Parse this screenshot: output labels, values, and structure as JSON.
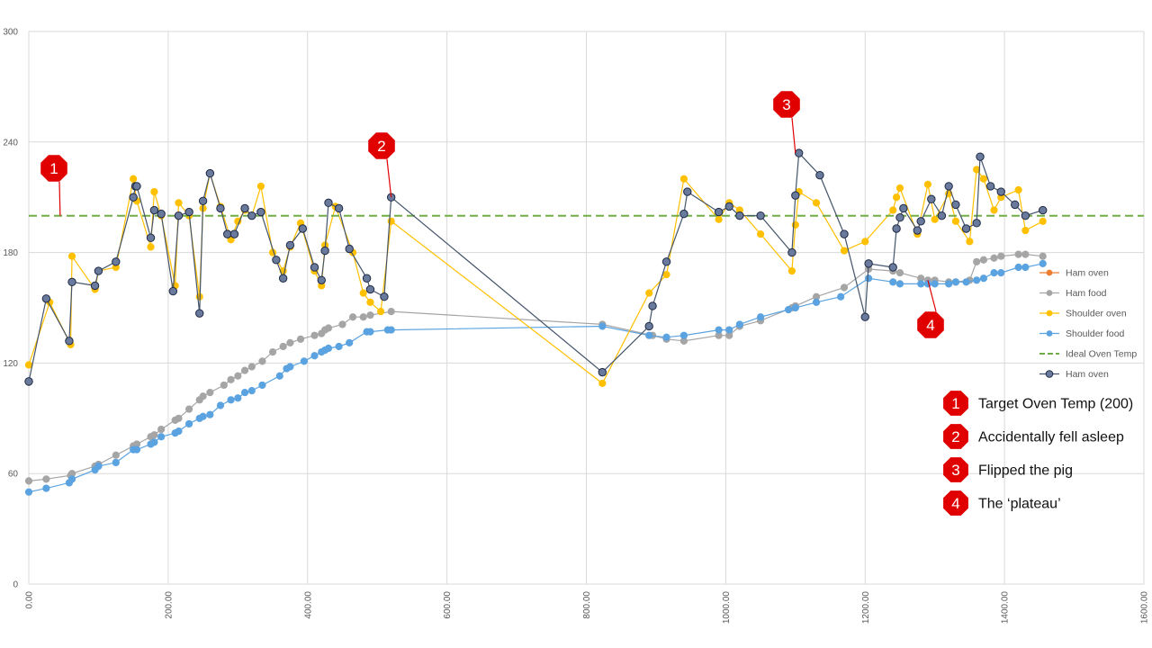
{
  "chart_data": {
    "type": "scatter",
    "title": "",
    "xlabel": "",
    "ylabel": "",
    "xlim": [
      0,
      1600
    ],
    "ylim": [
      0,
      300
    ],
    "x_ticks": [
      0,
      200,
      400,
      600,
      800,
      1000,
      1200,
      1400,
      1600
    ],
    "y_ticks": [
      0,
      60,
      120,
      180,
      240,
      300
    ],
    "x_tick_labels": [
      "0.00",
      "200.00",
      "400.00",
      "600.00",
      "800.00",
      "1000.00",
      "1200.00",
      "1400.00",
      "1600.00"
    ],
    "y_tick_labels": [
      "0",
      "60",
      "120",
      "180",
      "240",
      "300"
    ],
    "grid": true,
    "legend_position": "right",
    "legend": [
      "Ham oven",
      "Ham food",
      "Shoulder oven",
      "Shoulder food",
      "Ideal Oven Temp",
      "Ham oven"
    ],
    "series": [
      {
        "name": "Ham oven",
        "color": "#ed7d31",
        "style": "line-markers",
        "points": []
      },
      {
        "name": "Ham food",
        "color": "#a5a5a5",
        "style": "line-markers",
        "points": [
          [
            0,
            56
          ],
          [
            25,
            57
          ],
          [
            60,
            59
          ],
          [
            62,
            60
          ],
          [
            95,
            64
          ],
          [
            100,
            65
          ],
          [
            125,
            70
          ],
          [
            150,
            75
          ],
          [
            155,
            76
          ],
          [
            175,
            80
          ],
          [
            180,
            81
          ],
          [
            190,
            84
          ],
          [
            210,
            89
          ],
          [
            215,
            90
          ],
          [
            230,
            95
          ],
          [
            245,
            100
          ],
          [
            250,
            102
          ],
          [
            260,
            104
          ],
          [
            280,
            108
          ],
          [
            290,
            111
          ],
          [
            300,
            113
          ],
          [
            310,
            116
          ],
          [
            320,
            118
          ],
          [
            335,
            121
          ],
          [
            350,
            126
          ],
          [
            365,
            129
          ],
          [
            375,
            131
          ],
          [
            390,
            133
          ],
          [
            410,
            135
          ],
          [
            420,
            136
          ],
          [
            425,
            138
          ],
          [
            430,
            139
          ],
          [
            450,
            141
          ],
          [
            465,
            145
          ],
          [
            480,
            145
          ],
          [
            490,
            146
          ],
          [
            520,
            148
          ],
          [
            823,
            141
          ],
          [
            895,
            135
          ],
          [
            915,
            133
          ],
          [
            940,
            132
          ],
          [
            990,
            135
          ],
          [
            1005,
            135
          ],
          [
            1020,
            140
          ],
          [
            1050,
            143
          ],
          [
            1095,
            150
          ],
          [
            1100,
            151
          ],
          [
            1130,
            156
          ],
          [
            1170,
            161
          ],
          [
            1205,
            171
          ],
          [
            1240,
            170
          ],
          [
            1250,
            169
          ],
          [
            1280,
            166
          ],
          [
            1290,
            165
          ],
          [
            1300,
            165
          ],
          [
            1320,
            164
          ],
          [
            1330,
            164
          ],
          [
            1350,
            165
          ],
          [
            1360,
            175
          ],
          [
            1370,
            176
          ],
          [
            1385,
            177
          ],
          [
            1395,
            178
          ],
          [
            1420,
            179
          ],
          [
            1430,
            179
          ],
          [
            1455,
            178
          ]
        ]
      },
      {
        "name": "Shoulder oven",
        "color": "#ffc000",
        "style": "line-markers",
        "points": [
          [
            0,
            119
          ],
          [
            30,
            153
          ],
          [
            60,
            130
          ],
          [
            62,
            178
          ],
          [
            95,
            160
          ],
          [
            100,
            170
          ],
          [
            125,
            172
          ],
          [
            150,
            220
          ],
          [
            155,
            208
          ],
          [
            175,
            183
          ],
          [
            180,
            213
          ],
          [
            190,
            200
          ],
          [
            210,
            162
          ],
          [
            215,
            207
          ],
          [
            230,
            200
          ],
          [
            245,
            156
          ],
          [
            250,
            204
          ],
          [
            260,
            223
          ],
          [
            275,
            205
          ],
          [
            290,
            187
          ],
          [
            300,
            197
          ],
          [
            310,
            203
          ],
          [
            320,
            200
          ],
          [
            333,
            216
          ],
          [
            350,
            180
          ],
          [
            365,
            170
          ],
          [
            375,
            183
          ],
          [
            390,
            196
          ],
          [
            410,
            170
          ],
          [
            420,
            162
          ],
          [
            425,
            184
          ],
          [
            440,
            205
          ],
          [
            465,
            180
          ],
          [
            480,
            158
          ],
          [
            490,
            153
          ],
          [
            505,
            148
          ],
          [
            520,
            197
          ],
          [
            823,
            109
          ],
          [
            890,
            158
          ],
          [
            915,
            168
          ],
          [
            940,
            220
          ],
          [
            990,
            198
          ],
          [
            1005,
            207
          ],
          [
            1020,
            203
          ],
          [
            1050,
            190
          ],
          [
            1095,
            170
          ],
          [
            1100,
            195
          ],
          [
            1105,
            213
          ],
          [
            1130,
            207
          ],
          [
            1170,
            181
          ],
          [
            1200,
            186
          ],
          [
            1240,
            203
          ],
          [
            1245,
            210
          ],
          [
            1250,
            215
          ],
          [
            1275,
            190
          ],
          [
            1290,
            217
          ],
          [
            1300,
            198
          ],
          [
            1320,
            212
          ],
          [
            1330,
            197
          ],
          [
            1350,
            186
          ],
          [
            1360,
            225
          ],
          [
            1370,
            220
          ],
          [
            1385,
            203
          ],
          [
            1395,
            210
          ],
          [
            1420,
            214
          ],
          [
            1430,
            192
          ],
          [
            1455,
            197
          ]
        ]
      },
      {
        "name": "Shoulder food",
        "color": "#5ba3e0",
        "style": "line-markers",
        "points": [
          [
            0,
            50
          ],
          [
            25,
            52
          ],
          [
            58,
            55
          ],
          [
            62,
            57
          ],
          [
            95,
            62
          ],
          [
            100,
            64
          ],
          [
            125,
            66
          ],
          [
            150,
            73
          ],
          [
            155,
            73
          ],
          [
            175,
            76
          ],
          [
            180,
            77
          ],
          [
            190,
            80
          ],
          [
            210,
            82
          ],
          [
            215,
            83
          ],
          [
            230,
            87
          ],
          [
            245,
            90
          ],
          [
            250,
            91
          ],
          [
            260,
            92
          ],
          [
            275,
            97
          ],
          [
            290,
            100
          ],
          [
            300,
            101
          ],
          [
            310,
            104
          ],
          [
            320,
            105
          ],
          [
            335,
            108
          ],
          [
            360,
            113
          ],
          [
            370,
            117
          ],
          [
            375,
            118
          ],
          [
            395,
            121
          ],
          [
            410,
            124
          ],
          [
            420,
            126
          ],
          [
            425,
            127
          ],
          [
            430,
            128
          ],
          [
            445,
            129
          ],
          [
            460,
            131
          ],
          [
            485,
            137
          ],
          [
            490,
            137
          ],
          [
            515,
            138
          ],
          [
            520,
            138
          ],
          [
            823,
            140
          ],
          [
            890,
            135
          ],
          [
            915,
            134
          ],
          [
            940,
            135
          ],
          [
            990,
            138
          ],
          [
            1005,
            138
          ],
          [
            1020,
            141
          ],
          [
            1050,
            145
          ],
          [
            1090,
            149
          ],
          [
            1100,
            150
          ],
          [
            1130,
            153
          ],
          [
            1165,
            156
          ],
          [
            1205,
            166
          ],
          [
            1240,
            164
          ],
          [
            1250,
            163
          ],
          [
            1280,
            163
          ],
          [
            1290,
            163
          ],
          [
            1300,
            163
          ],
          [
            1320,
            163
          ],
          [
            1330,
            164
          ],
          [
            1345,
            164
          ],
          [
            1360,
            165
          ],
          [
            1370,
            166
          ],
          [
            1385,
            169
          ],
          [
            1395,
            169
          ],
          [
            1420,
            172
          ],
          [
            1430,
            172
          ],
          [
            1455,
            174
          ]
        ]
      },
      {
        "name": "Ideal Oven Temp",
        "color": "#70ad47",
        "style": "dashed",
        "points": [
          [
            0,
            200
          ],
          [
            1600,
            200
          ]
        ]
      },
      {
        "name": "Ham oven",
        "color": "#44546a",
        "style": "line-markers",
        "points": [
          [
            0,
            110
          ],
          [
            25,
            155
          ],
          [
            58,
            132
          ],
          [
            62,
            164
          ],
          [
            95,
            162
          ],
          [
            100,
            170
          ],
          [
            125,
            175
          ],
          [
            150,
            210
          ],
          [
            153,
            216
          ],
          [
            155,
            216
          ],
          [
            175,
            188
          ],
          [
            180,
            203
          ],
          [
            190,
            201
          ],
          [
            207,
            159
          ],
          [
            215,
            200
          ],
          [
            230,
            202
          ],
          [
            245,
            147
          ],
          [
            250,
            208
          ],
          [
            260,
            223
          ],
          [
            275,
            204
          ],
          [
            285,
            190
          ],
          [
            295,
            190
          ],
          [
            310,
            204
          ],
          [
            320,
            200
          ],
          [
            333,
            202
          ],
          [
            355,
            176
          ],
          [
            365,
            166
          ],
          [
            375,
            184
          ],
          [
            393,
            193
          ],
          [
            410,
            172
          ],
          [
            420,
            165
          ],
          [
            425,
            181
          ],
          [
            430,
            207
          ],
          [
            445,
            204
          ],
          [
            460,
            182
          ],
          [
            485,
            166
          ],
          [
            490,
            160
          ],
          [
            510,
            156
          ],
          [
            520,
            210
          ],
          [
            823,
            115
          ],
          [
            890,
            140
          ],
          [
            895,
            151
          ],
          [
            915,
            175
          ],
          [
            940,
            201
          ],
          [
            945,
            213
          ],
          [
            990,
            202
          ],
          [
            1005,
            205
          ],
          [
            1020,
            200
          ],
          [
            1050,
            200
          ],
          [
            1095,
            180
          ],
          [
            1100,
            211
          ],
          [
            1105,
            234
          ],
          [
            1135,
            222
          ],
          [
            1170,
            190
          ],
          [
            1200,
            145
          ],
          [
            1205,
            174
          ],
          [
            1240,
            172
          ],
          [
            1245,
            193
          ],
          [
            1250,
            199
          ],
          [
            1255,
            204
          ],
          [
            1275,
            192
          ],
          [
            1280,
            197
          ],
          [
            1295,
            209
          ],
          [
            1310,
            200
          ],
          [
            1320,
            216
          ],
          [
            1330,
            206
          ],
          [
            1345,
            193
          ],
          [
            1360,
            196
          ],
          [
            1365,
            232
          ],
          [
            1380,
            216
          ],
          [
            1395,
            213
          ],
          [
            1415,
            206
          ],
          [
            1430,
            200
          ],
          [
            1455,
            203
          ]
        ]
      }
    ],
    "annotations": [
      {
        "number": "1",
        "text": "Target Oven Temp (200)",
        "x": 45,
        "y": 200
      },
      {
        "number": "2",
        "text": "Accidentally fell asleep",
        "x": 520,
        "y": 210
      },
      {
        "number": "3",
        "text": "Flipped the pig",
        "x": 1100,
        "y": 234
      },
      {
        "number": "4",
        "text": "The ‘plateau’",
        "x": 1290,
        "y": 165
      }
    ],
    "badge_color": "#e00000"
  }
}
